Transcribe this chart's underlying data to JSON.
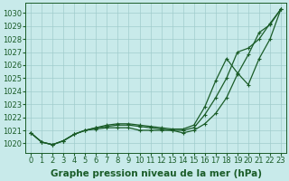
{
  "xlabel": "Graphe pression niveau de la mer (hPa)",
  "ylabel": "",
  "bg_color": "#c8eaea",
  "grid_color": "#a0cccc",
  "line_color": "#1a5c28",
  "xlim": [
    -0.5,
    23.5
  ],
  "ylim": [
    1019.3,
    1030.8
  ],
  "yticks": [
    1020,
    1021,
    1022,
    1023,
    1024,
    1025,
    1026,
    1027,
    1028,
    1029,
    1030
  ],
  "xticks": [
    0,
    1,
    2,
    3,
    4,
    5,
    6,
    7,
    8,
    9,
    10,
    11,
    12,
    13,
    14,
    15,
    16,
    17,
    18,
    19,
    20,
    21,
    22,
    23
  ],
  "series": [
    [
      1020.8,
      1020.1,
      1019.9,
      1020.2,
      1020.7,
      1021.0,
      1021.1,
      1021.2,
      1021.2,
      1021.2,
      1021.0,
      1021.0,
      1021.0,
      1021.0,
      1020.8,
      1021.0,
      1021.5,
      1022.3,
      1023.5,
      1025.3,
      1026.8,
      1028.5,
      1029.1,
      1030.3
    ],
    [
      1020.8,
      1020.1,
      1019.9,
      1020.2,
      1020.7,
      1021.0,
      1021.2,
      1021.3,
      1021.4,
      1021.4,
      1021.3,
      1021.2,
      1021.1,
      1021.0,
      1021.0,
      1021.2,
      1022.2,
      1023.5,
      1025.0,
      1027.0,
      1027.3,
      1028.0,
      1029.2,
      1030.3
    ],
    [
      1020.8,
      1020.1,
      1019.9,
      1020.2,
      1020.7,
      1021.0,
      1021.2,
      1021.4,
      1021.5,
      1021.5,
      1021.4,
      1021.3,
      1021.2,
      1021.1,
      1021.1,
      1021.4,
      1022.8,
      1024.8,
      1026.5,
      1025.4,
      1024.5,
      1026.5,
      1028.0,
      1030.3
    ]
  ],
  "marker": "+",
  "markersize": 3,
  "linewidth": 0.9,
  "xlabel_fontsize": 7.5,
  "tick_fontsize": 6,
  "xlabel_fontweight": "bold",
  "figw": 3.2,
  "figh": 2.0,
  "dpi": 100
}
